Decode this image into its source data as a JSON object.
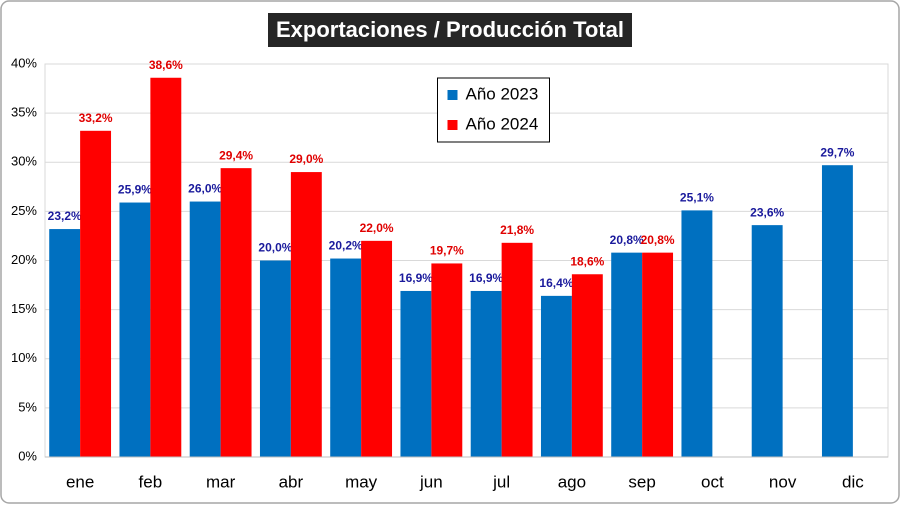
{
  "chart_data": {
    "type": "bar",
    "title": "Exportaciones / Producción Total",
    "categories": [
      "ene",
      "feb",
      "mar",
      "abr",
      "may",
      "jun",
      "jul",
      "ago",
      "sep",
      "oct",
      "nov",
      "dic"
    ],
    "series": [
      {
        "name": "Año 2023",
        "color": "#0070c0",
        "label_color": "#1a1a9c",
        "values": [
          23.2,
          25.9,
          26.0,
          20.0,
          20.2,
          16.9,
          16.9,
          16.4,
          20.8,
          25.1,
          23.6,
          29.7
        ],
        "value_labels": [
          "23,2%",
          "25,9%",
          "26,0%",
          "20,0%",
          "20,2%",
          "16,9%",
          "16,9%",
          "16,4%",
          "20,8%",
          "25,1%",
          "23,6%",
          "29,7%"
        ]
      },
      {
        "name": "Año 2024",
        "color": "#ff0000",
        "label_color": "#e00000",
        "values": [
          33.2,
          38.6,
          29.4,
          29.0,
          22.0,
          19.7,
          21.8,
          18.6,
          20.8,
          null,
          null,
          null
        ],
        "value_labels": [
          "33,2%",
          "38,6%",
          "29,4%",
          "29,0%",
          "22,0%",
          "19,7%",
          "21,8%",
          "18,6%",
          "20,8%",
          null,
          null,
          null
        ]
      }
    ],
    "ylim": [
      0,
      40
    ],
    "yticks": [
      {
        "value": 0,
        "label": "0%"
      },
      {
        "value": 5,
        "label": "5%"
      },
      {
        "value": 10,
        "label": "10%"
      },
      {
        "value": 15,
        "label": "15%"
      },
      {
        "value": 20,
        "label": "20%"
      },
      {
        "value": 25,
        "label": "25%"
      },
      {
        "value": 30,
        "label": "30%"
      },
      {
        "value": 35,
        "label": "35%"
      },
      {
        "value": 40,
        "label": "40%"
      }
    ],
    "grid": true,
    "legend": "upper center"
  }
}
